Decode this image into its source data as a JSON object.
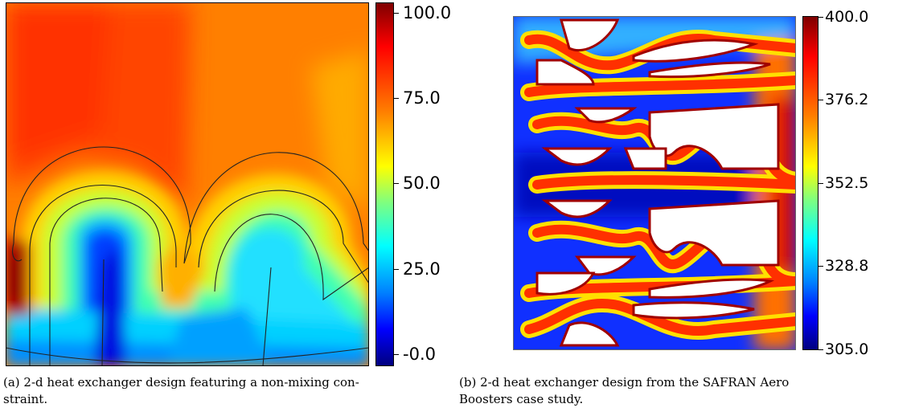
{
  "figures": [
    {
      "colorbar_ticks": [
        "100.0",
        "75.0",
        "50.0",
        "25.0",
        "-0.0"
      ],
      "caption_line1": "(a) 2-d heat exchanger design featuring a non-mixing con-",
      "caption_line2": "straint."
    },
    {
      "colorbar_ticks": [
        "400.0",
        "376.2",
        "352.5",
        "328.8",
        "305.0"
      ],
      "caption_line1": "(b) 2-d heat exchanger design from the SAFRAN Aero",
      "caption_line2": "Boosters case study."
    }
  ],
  "colormap": "jet",
  "colors": {
    "jet": [
      "#00007f",
      "#0000ff",
      "#007fff",
      "#00ffff",
      "#7fff7f",
      "#ffff00",
      "#ff7f00",
      "#ff0000",
      "#7f0000"
    ]
  }
}
